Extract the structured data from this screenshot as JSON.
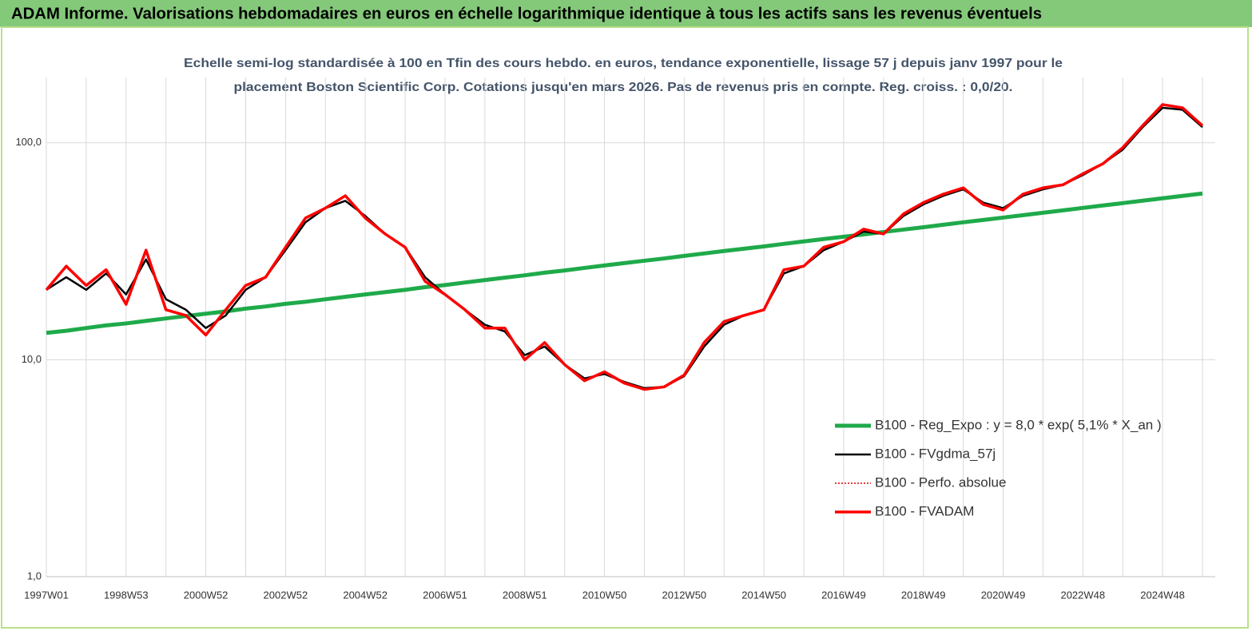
{
  "chart_data": {
    "type": "line",
    "title": "ADAM Informe. Valorisations hebdomadaires en euros en échelle logarithmique identique à tous les actifs sans les revenus éventuels",
    "subtitle": [
      "Echelle semi-log standardisée à 100 en Tfin des cours hebdo. en euros, tendance exponentielle, lissage 57 j depuis janv 1997 pour le",
      "placement Boston Scientific Corp. Cotations jusqu'en mars 2026. Pas de revenus pris en compte. Reg. croiss. : 0,0/20."
    ],
    "log_scale": true,
    "grid": true,
    "legend": "lower right",
    "ylim": [
      1,
      200
    ],
    "yticks": [
      {
        "value": 1,
        "label": "1,0"
      },
      {
        "value": 10,
        "label": "10,0"
      },
      {
        "value": 100,
        "label": "100,0"
      }
    ],
    "categories": [
      "1997W01",
      null,
      null,
      null,
      "1998W53",
      null,
      null,
      null,
      "2000W52",
      null,
      null,
      null,
      "2002W52",
      null,
      null,
      null,
      "2004W52",
      null,
      null,
      null,
      "2006W51",
      null,
      null,
      null,
      "2008W51",
      null,
      null,
      null,
      "2010W50",
      null,
      null,
      null,
      "2012W50",
      null,
      null,
      null,
      "2014W50",
      null,
      null,
      null,
      "2016W49",
      null,
      null,
      null,
      "2018W49",
      null,
      null,
      null,
      "2020W49",
      null,
      null,
      null,
      "2022W48",
      null,
      null,
      null,
      "2024W48",
      null,
      null
    ],
    "series": [
      {
        "name": "B100 - Reg_Expo : y = 8,0 * exp( 5,1% *  X_an )",
        "color": "#1faa4a",
        "style": "solid",
        "width": 5,
        "values": [
          13.3,
          13.6,
          14.0,
          14.4,
          14.7,
          15.1,
          15.5,
          15.9,
          16.3,
          16.7,
          17.2,
          17.6,
          18.1,
          18.5,
          19.0,
          19.5,
          20.0,
          20.5,
          21.0,
          21.6,
          22.1,
          22.7,
          23.3,
          23.9,
          24.5,
          25.2,
          25.8,
          26.5,
          27.2,
          27.9,
          28.6,
          29.3,
          30.1,
          30.9,
          31.7,
          32.5,
          33.3,
          34.2,
          35.1,
          36.0,
          36.9,
          37.8,
          38.8,
          39.8,
          40.8,
          41.9,
          43.0,
          44.1,
          45.2,
          46.4,
          47.6,
          48.8,
          50.1,
          51.4,
          52.7,
          54.1,
          55.5,
          56.9,
          58.4
        ]
      },
      {
        "name": "B100 - FVgdma_57j",
        "color": "#000000",
        "style": "solid",
        "width": 2.5,
        "values": [
          21,
          24,
          21,
          25,
          20,
          29,
          19,
          17,
          14,
          16,
          21,
          24,
          32,
          43,
          50,
          54,
          46,
          38,
          33,
          24,
          20,
          17,
          14.5,
          13.5,
          10.5,
          11.5,
          9.5,
          8.2,
          8.6,
          7.9,
          7.4,
          7.5,
          8.4,
          11.5,
          14.5,
          16,
          17,
          25,
          27,
          32,
          35,
          39,
          38,
          46,
          52,
          57,
          61,
          53,
          50,
          57,
          61,
          64,
          71,
          80,
          93,
          118,
          145,
          142,
          118
        ]
      },
      {
        "name": "B100 - Perfo. absolue",
        "color": "#e00000",
        "style": "dotted",
        "width": 1.5,
        "values": [
          21,
          27,
          22,
          26,
          18,
          32,
          17,
          16,
          13,
          17,
          22,
          24,
          33,
          45,
          50,
          57,
          45,
          38,
          33,
          23,
          20,
          17,
          14,
          14,
          10,
          12,
          9.5,
          8,
          8.8,
          7.8,
          7.3,
          7.5,
          8.5,
          12,
          15,
          16,
          17,
          26,
          27,
          33,
          35,
          40,
          38,
          47,
          53,
          58,
          62,
          52,
          49,
          58,
          62,
          64,
          72,
          80,
          95,
          120,
          150,
          145,
          120
        ]
      },
      {
        "name": "B100 - FVADAM",
        "color": "#ff0000",
        "style": "solid",
        "width": 3.5,
        "values": [
          21,
          27,
          22,
          26,
          18,
          32,
          17,
          16,
          13,
          17,
          22,
          24,
          33,
          45,
          50,
          57,
          45,
          38,
          33,
          23,
          20,
          17,
          14,
          14,
          10,
          12,
          9.5,
          8,
          8.8,
          7.8,
          7.3,
          7.5,
          8.5,
          12,
          15,
          16,
          17,
          26,
          27,
          33,
          35,
          40,
          38,
          47,
          53,
          58,
          62,
          52,
          49,
          58,
          62,
          64,
          72,
          80,
          95,
          120,
          150,
          145,
          120
        ]
      }
    ]
  }
}
